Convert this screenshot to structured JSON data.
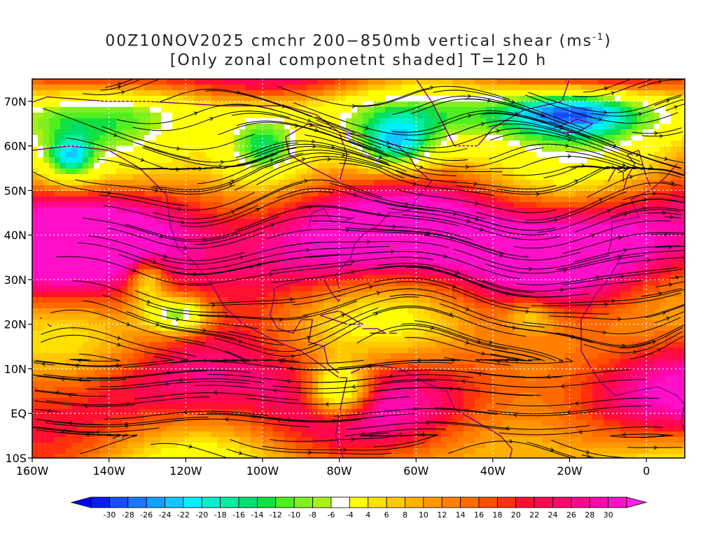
{
  "title": {
    "line1_a": "00Z10NOV2025 cmchr 200−850mb vertical shear (ms",
    "line1_sup": "-1",
    "line1_b": ")",
    "line2": "[Only zonal componetnt shaded] T=120 h"
  },
  "map": {
    "lon_range": [
      -160,
      10
    ],
    "lat_range": [
      -10,
      75
    ],
    "lat_labels": [
      "70N",
      "60N",
      "50N",
      "40N",
      "30N",
      "20N",
      "10N",
      "EQ",
      "10S"
    ],
    "lat_values": [
      70,
      60,
      50,
      40,
      30,
      20,
      10,
      0,
      -10
    ],
    "lon_labels": [
      "160W",
      "140W",
      "120W",
      "100W",
      "80W",
      "60W",
      "40W",
      "20W",
      "0"
    ],
    "lon_values": [
      -160,
      -140,
      -120,
      -100,
      -80,
      -60,
      -40,
      -20,
      0
    ],
    "field": "200-850mb zonal vertical shear (shaded) with streamlines"
  },
  "colorbar": {
    "labels": [
      "-30",
      "-28",
      "-26",
      "-24",
      "-22",
      "-20",
      "-18",
      "-16",
      "-14",
      "-12",
      "-10",
      "-8",
      "-6",
      "-4",
      "4",
      "6",
      "8",
      "10",
      "12",
      "14",
      "16",
      "18",
      "20",
      "22",
      "24",
      "26",
      "28",
      "30"
    ],
    "colors": [
      "#0a1cf0",
      "#1a4cff",
      "#1a78ff",
      "#10a0ff",
      "#10c8ff",
      "#00f0ff",
      "#00f0d0",
      "#00f0a0",
      "#00e070",
      "#10e040",
      "#50f020",
      "#80f020",
      "#a8f018",
      "#ffffff",
      "#ffff00",
      "#ffe000",
      "#ffc800",
      "#ffb000",
      "#ff9800",
      "#ff8000",
      "#ff6a00",
      "#ff5000",
      "#ff3010",
      "#ff1030",
      "#ff0850",
      "#ff0870",
      "#ff0890",
      "#ff08b0",
      "#ff10c8"
    ],
    "left_arrow": "#0000ff",
    "right_arrow": "#ff20e0"
  },
  "colors": {
    "coast": "#800080",
    "stream": "#000000",
    "grid": "#ffffff"
  }
}
